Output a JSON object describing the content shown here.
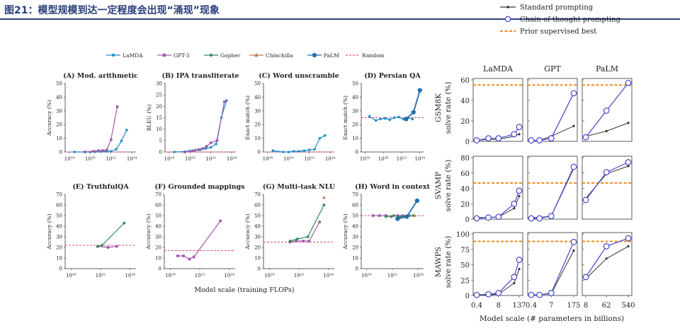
{
  "header": {
    "title": "图21：模型规模到达一定程度会出现“涌现”现象"
  },
  "left": {
    "legend": [
      {
        "name": "LaMDA",
        "color": "#1f8fc8",
        "marker": "circle"
      },
      {
        "name": "GPT-3",
        "color": "#a05aa8",
        "marker": "square"
      },
      {
        "name": "Gopher",
        "color": "#2e8b57",
        "marker": "diamond"
      },
      {
        "name": "Chinchilla",
        "color": "#c07a5a",
        "marker": "triangle"
      },
      {
        "name": "PaLM",
        "color": "#1f6fae",
        "marker": "pentagon"
      },
      {
        "name": "Random",
        "color": "#e0507a",
        "marker": "dash"
      }
    ],
    "xlabel": "Model scale (training FLOPs)"
  },
  "right": {
    "legend": [
      {
        "name": "Standard prompting",
        "color": "#333333"
      },
      {
        "name": "Chain-of-thought prompting",
        "color": "#4444cc"
      },
      {
        "name": "Prior supervised best",
        "color": "#f08a1c"
      }
    ],
    "xlabel": "Model scale (# parameters in billions)"
  },
  "chart_data": [
    {
      "id": "A",
      "type": "line",
      "title": "(A) Mod. arithmetic",
      "ylabel": "Accuracy (%)",
      "ylim": [
        0,
        50
      ],
      "yticks": [
        0,
        10,
        20,
        30,
        40,
        50
      ],
      "xlim": [
        17.6,
        24.4
      ],
      "xticks": [
        18,
        20,
        22,
        24
      ],
      "xtick_labels": [
        "10¹⁸",
        "10²⁰",
        "10²²",
        "10²⁴"
      ],
      "random": 0,
      "series": [
        {
          "name": "LaMDA",
          "x": [
            18.5,
            19.5,
            20,
            20.5,
            21,
            21.5,
            22,
            22.5,
            23,
            23.5
          ],
          "y": [
            0,
            0,
            0,
            0.2,
            0.3,
            0.5,
            0.5,
            2,
            8,
            16
          ]
        },
        {
          "name": "GPT-3",
          "x": [
            19.5,
            20.3,
            20.8,
            21.2,
            21.6,
            22,
            22.6
          ],
          "y": [
            0,
            0.5,
            1,
            1,
            1.5,
            9,
            33
          ]
        }
      ]
    },
    {
      "id": "B",
      "type": "line",
      "title": "(B) IPA transliterate",
      "ylabel": "BLEU (%)",
      "ylim": [
        0,
        30
      ],
      "yticks": [
        0,
        5,
        10,
        15,
        20,
        25,
        30
      ],
      "xlim": [
        17.6,
        24.4
      ],
      "xticks": [
        18,
        20,
        22,
        24
      ],
      "xtick_labels": [
        "10¹⁸",
        "10²⁰",
        "10²²",
        "10²⁴"
      ],
      "random": 0,
      "series": [
        {
          "name": "LaMDA",
          "x": [
            18.5,
            19.5,
            20,
            20.5,
            21,
            21.5,
            22,
            22.5,
            23,
            23.5
          ],
          "y": [
            0,
            0.2,
            0.5,
            0.8,
            1,
            1.5,
            2,
            3.5,
            15,
            22.5
          ]
        },
        {
          "name": "GPT-3",
          "x": [
            19.5,
            20.3,
            20.8,
            21.2,
            21.6,
            22,
            22.6,
            23.3
          ],
          "y": [
            0,
            0.5,
            1,
            1.5,
            2.5,
            4,
            5,
            22
          ]
        }
      ]
    },
    {
      "id": "C",
      "type": "line",
      "title": "(C) Word unscramble",
      "ylabel": "Exact match (%)",
      "ylim": [
        0,
        50
      ],
      "yticks": [
        0,
        10,
        20,
        30,
        40,
        50
      ],
      "xlim": [
        17.6,
        24.4
      ],
      "xticks": [
        18,
        20,
        22,
        24
      ],
      "xtick_labels": [
        "10¹⁸",
        "10²⁰",
        "10²²",
        "10²⁴"
      ],
      "random": 0,
      "series": [
        {
          "name": "LaMDA",
          "x": [
            18.5,
            19.5,
            20,
            20.5,
            21,
            21.5,
            22,
            22.5,
            23,
            23.5
          ],
          "y": [
            1,
            0,
            0,
            0.5,
            0.5,
            1,
            1.5,
            2,
            10,
            12
          ]
        }
      ]
    },
    {
      "id": "D",
      "type": "line",
      "title": "(D) Persian QA",
      "ylabel": "Exact match (%)",
      "ylim": [
        0,
        50
      ],
      "yticks": [
        0,
        10,
        20,
        30,
        40,
        50
      ],
      "xlim": [
        17.6,
        24.4
      ],
      "xticks": [
        18,
        20,
        22,
        24
      ],
      "xtick_labels": [
        "10¹⁸",
        "10²⁰",
        "10²²",
        "10²⁴"
      ],
      "random": 25,
      "series": [
        {
          "name": "LaMDA",
          "x": [
            18.5,
            19.2,
            19.7,
            20.2,
            20.7,
            21.2,
            21.7,
            22.2,
            22.7,
            23.2
          ],
          "y": [
            26,
            23,
            24,
            24.5,
            23.5,
            25,
            25.5,
            24,
            25,
            24
          ]
        },
        {
          "name": "PaLM",
          "x": [
            22.5,
            23.3,
            24
          ],
          "y": [
            24,
            29,
            45
          ]
        }
      ]
    },
    {
      "id": "E",
      "type": "line",
      "title": "(E) TruthfulQA",
      "ylabel": "Accuracy (%)",
      "ylim": [
        0,
        70
      ],
      "yticks": [
        0,
        10,
        20,
        30,
        40,
        50,
        60,
        70
      ],
      "xlim": [
        19.6,
        24.4
      ],
      "xticks": [
        20,
        22,
        24
      ],
      "xtick_labels": [
        "10²⁰",
        "10²²",
        "10²⁴"
      ],
      "random": 22,
      "series": [
        {
          "name": "GPT-3",
          "x": [
            21.8,
            22.5,
            23.1
          ],
          "y": [
            21,
            20,
            21
          ]
        },
        {
          "name": "Gopher",
          "x": [
            21.8,
            22.1,
            23.6
          ],
          "y": [
            21,
            22,
            43
          ]
        }
      ]
    },
    {
      "id": "F",
      "type": "line",
      "title": "(F) Grounded mappings",
      "ylabel": "Accuracy (%)",
      "ylim": [
        0,
        70
      ],
      "yticks": [
        0,
        10,
        20,
        30,
        40,
        50,
        60,
        70
      ],
      "xlim": [
        19.6,
        24.4
      ],
      "xticks": [
        20,
        22,
        24
      ],
      "xtick_labels": [
        "10²⁰",
        "10²²",
        "10²⁴"
      ],
      "random": 17,
      "series": [
        {
          "name": "GPT-3",
          "x": [
            20.5,
            20.9,
            21.3,
            21.6,
            23.4
          ],
          "y": [
            12,
            12,
            9,
            11,
            45
          ]
        }
      ]
    },
    {
      "id": "G",
      "type": "line",
      "title": "(G) Multi-task NLU",
      "ylabel": "Accuracy (%)",
      "ylim": [
        0,
        70
      ],
      "yticks": [
        0,
        10,
        20,
        30,
        40,
        50,
        60,
        70
      ],
      "xlim": [
        19.6,
        24.4
      ],
      "xticks": [
        20,
        22,
        24
      ],
      "xtick_labels": [
        "10²⁰",
        "10²²",
        "10²⁴"
      ],
      "random": 25,
      "series": [
        {
          "name": "GPT-3",
          "x": [
            21.4,
            21.8,
            22.3,
            22.7,
            23.4
          ],
          "y": [
            25,
            26,
            26,
            26,
            44
          ]
        },
        {
          "name": "Gopher",
          "x": [
            21.4,
            21.9,
            22.6,
            23.7
          ],
          "y": [
            26,
            28,
            30,
            60
          ]
        },
        {
          "name": "Chinchilla",
          "x": [
            23.7
          ],
          "y": [
            67
          ]
        }
      ]
    },
    {
      "id": "H",
      "type": "line",
      "title": "(H) Word in context",
      "ylabel": "Accuracy (%)",
      "ylim": [
        0,
        70
      ],
      "yticks": [
        0,
        10,
        20,
        30,
        40,
        50,
        60,
        70
      ],
      "xlim": [
        19.6,
        24.4
      ],
      "xticks": [
        20,
        22,
        24
      ],
      "xtick_labels": [
        "10²⁰",
        "10²²",
        "10²⁴"
      ],
      "random": 50,
      "series": [
        {
          "name": "GPT-3",
          "x": [
            20.5,
            21,
            21.5,
            21.9,
            22.4,
            22.8,
            23.3
          ],
          "y": [
            50,
            50,
            50,
            49,
            50,
            50,
            50
          ]
        },
        {
          "name": "Gopher",
          "x": [
            21.5,
            22.1,
            22.6,
            23.6
          ],
          "y": [
            49,
            50,
            49,
            50
          ]
        },
        {
          "name": "Chinchilla",
          "x": [
            23.7
          ],
          "y": [
            50
          ]
        },
        {
          "name": "PaLM",
          "x": [
            22.4,
            23.1,
            23.9
          ],
          "y": [
            47,
            49,
            64
          ]
        }
      ]
    },
    {
      "id": "R",
      "type": "line",
      "grid": {
        "columns": [
          "LaMDA",
          "GPT",
          "PaLM"
        ],
        "rows": [
          "GSM8K",
          "SVAMP",
          "MAWPS"
        ],
        "row_ylabel_suffix": "solve rate (%)"
      },
      "panels": [
        {
          "row": "GSM8K",
          "col": "LaMDA",
          "ylim": [
            0,
            60
          ],
          "yticks": [
            0,
            20,
            40,
            60
          ],
          "x_categories": [
            "0.4",
            "8",
            "137"
          ],
          "x": [
            0.4,
            2,
            8,
            68,
            137
          ],
          "standard": [
            1,
            2,
            2,
            5,
            7
          ],
          "cot": [
            1,
            3,
            3,
            7,
            14
          ],
          "prior": 55
        },
        {
          "row": "GSM8K",
          "col": "GPT",
          "ylim": [
            0,
            60
          ],
          "yticks": [
            0,
            20,
            40,
            60
          ],
          "x_categories": [
            "0.4",
            "7",
            "175"
          ],
          "x": [
            0.4,
            1.3,
            7,
            175
          ],
          "standard": [
            1,
            1,
            5,
            15
          ],
          "cot": [
            1,
            1,
            3,
            47
          ],
          "prior": 55
        },
        {
          "row": "GSM8K",
          "col": "PaLM",
          "ylim": [
            0,
            60
          ],
          "yticks": [
            0,
            20,
            40,
            60
          ],
          "x_categories": [
            "8",
            "62",
            "540"
          ],
          "x": [
            8,
            62,
            540
          ],
          "standard": [
            5,
            10,
            18
          ],
          "cot": [
            4,
            30,
            57
          ],
          "prior": 55
        },
        {
          "row": "SVAMP",
          "col": "LaMDA",
          "ylim": [
            0,
            80
          ],
          "yticks": [
            0,
            20,
            40,
            60,
            80
          ],
          "x_categories": [
            "0.4",
            "8",
            "137"
          ],
          "x": [
            0.4,
            2,
            8,
            68,
            137
          ],
          "standard": [
            2,
            2,
            3,
            14,
            30
          ],
          "cot": [
            1,
            2,
            3,
            20,
            37
          ],
          "prior": 47
        },
        {
          "row": "SVAMP",
          "col": "GPT",
          "ylim": [
            0,
            80
          ],
          "yticks": [
            0,
            20,
            40,
            60,
            80
          ],
          "x_categories": [
            "0.4",
            "7",
            "175"
          ],
          "x": [
            0.4,
            1.3,
            7,
            175
          ],
          "standard": [
            2,
            2,
            4,
            66
          ],
          "cot": [
            1,
            1,
            4,
            68
          ],
          "prior": 47
        },
        {
          "row": "SVAMP",
          "col": "PaLM",
          "ylim": [
            0,
            80
          ],
          "yticks": [
            0,
            20,
            40,
            60,
            80
          ],
          "x_categories": [
            "8",
            "62",
            "540"
          ],
          "x": [
            8,
            62,
            540
          ],
          "standard": [
            27,
            59,
            69
          ],
          "cot": [
            25,
            61,
            74
          ],
          "prior": 47
        },
        {
          "row": "MAWPS",
          "col": "LaMDA",
          "ylim": [
            0,
            100
          ],
          "yticks": [
            0,
            25,
            50,
            75,
            100
          ],
          "x_categories": [
            "0.4",
            "8",
            "137"
          ],
          "x": [
            0.4,
            2,
            8,
            68,
            137
          ],
          "standard": [
            1,
            1,
            2,
            20,
            43
          ],
          "cot": [
            1,
            2,
            4,
            30,
            58
          ],
          "prior": 88
        },
        {
          "row": "MAWPS",
          "col": "GPT",
          "ylim": [
            0,
            100
          ],
          "yticks": [
            0,
            25,
            50,
            75,
            100
          ],
          "x_categories": [
            "0.4",
            "7",
            "175"
          ],
          "x": [
            0.4,
            1.3,
            7,
            175
          ],
          "standard": [
            1,
            1,
            3,
            73
          ],
          "cot": [
            1,
            1,
            4,
            87
          ],
          "prior": 88
        },
        {
          "row": "MAWPS",
          "col": "PaLM",
          "ylim": [
            0,
            100
          ],
          "yticks": [
            0,
            25,
            50,
            75,
            100
          ],
          "x_categories": [
            "8",
            "62",
            "540"
          ],
          "x": [
            8,
            62,
            540
          ],
          "standard": [
            27,
            60,
            80
          ],
          "cot": [
            30,
            80,
            93
          ],
          "prior": 88
        }
      ]
    }
  ]
}
